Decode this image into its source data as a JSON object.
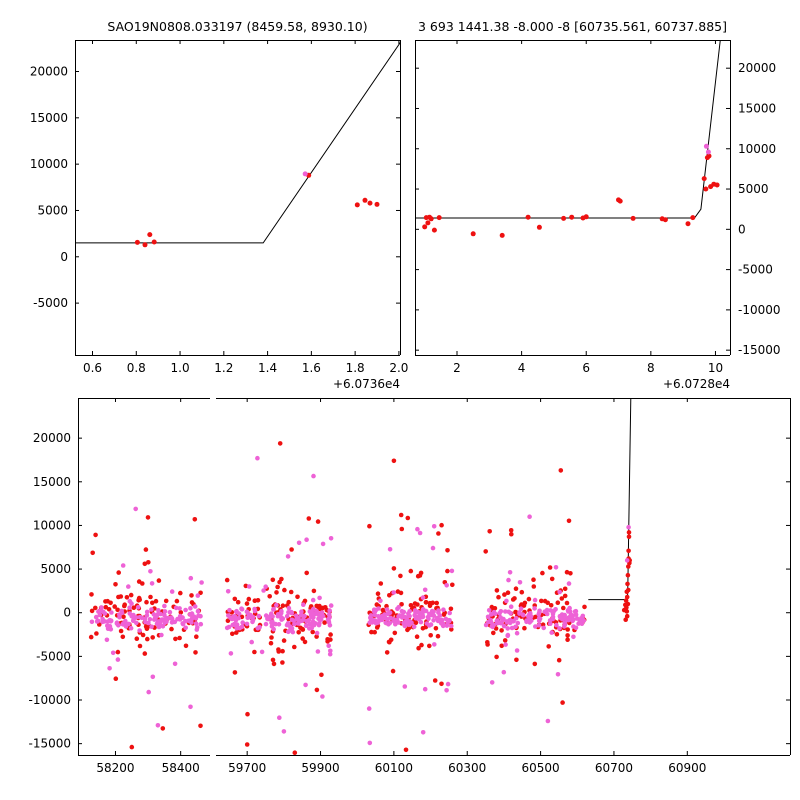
{
  "colors": {
    "red": "#ee1111",
    "violet": "#ee62d6",
    "line": "#000000",
    "frame": "#000000",
    "background": "#ffffff"
  },
  "chart_data": {
    "top_left": {
      "type": "scatter+line",
      "title": "SAO19N0808.033197 (8459.58, 8930.10)",
      "x_offset_label": "+6.0736e4",
      "ylim": [
        -10600,
        23400
      ],
      "yticks": [
        -5000,
        0,
        5000,
        10000,
        15000,
        20000
      ],
      "ytick_labels": [
        "-5000",
        "0",
        "5000",
        "10000",
        "15000",
        "20000"
      ],
      "ylabels_side": "left",
      "segments": [
        {
          "xlim": [
            0.52,
            2.005
          ],
          "xticks": [
            0.6,
            0.8,
            1.0,
            1.2,
            1.4,
            1.6,
            1.8,
            2.0
          ],
          "xtick_labels": [
            "0.6",
            "0.8",
            "1.0",
            "1.2",
            "1.4",
            "1.6",
            "1.8",
            "2.0"
          ]
        }
      ],
      "line": [
        [
          0.52,
          1500
        ],
        [
          1.38,
          1500
        ],
        [
          2.02,
          23600
        ]
      ],
      "line_seg": 0,
      "red_points": [
        [
          0.805,
          1550
        ],
        [
          0.84,
          1300
        ],
        [
          0.862,
          2400
        ],
        [
          0.882,
          1600
        ],
        [
          1.588,
          8800
        ],
        [
          1.81,
          5600
        ],
        [
          1.845,
          6100
        ],
        [
          1.868,
          5800
        ],
        [
          1.9,
          5650
        ]
      ],
      "violet_points": [
        [
          1.572,
          8950
        ]
      ]
    },
    "top_right": {
      "type": "scatter+line",
      "title": "3 693 1441.38 -8.000 -8 [60735.561, 60737.885]",
      "x_offset_label": "+6.0728e4",
      "ylim": [
        -15600,
        23500
      ],
      "yticks": [
        -15000,
        -10000,
        -5000,
        0,
        5000,
        10000,
        15000,
        20000
      ],
      "ytick_labels": [
        "-15000",
        "-10000",
        "-5000",
        "0",
        "5000",
        "10000",
        "15000",
        "20000"
      ],
      "ylabels_side": "right",
      "segments": [
        {
          "xlim": [
            0.7,
            10.45
          ],
          "xticks": [
            2,
            4,
            6,
            8,
            10
          ],
          "xtick_labels": [
            "2",
            "4",
            "6",
            "8",
            "10"
          ]
        }
      ],
      "line": [
        [
          0.7,
          1400
        ],
        [
          9.35,
          1400
        ],
        [
          9.55,
          2500
        ],
        [
          10.15,
          23500
        ]
      ],
      "line_seg": 0,
      "red_points": [
        [
          1.0,
          300
        ],
        [
          1.05,
          1450
        ],
        [
          1.1,
          800
        ],
        [
          1.15,
          1500
        ],
        [
          1.2,
          1300
        ],
        [
          1.3,
          -100
        ],
        [
          1.45,
          1450
        ],
        [
          2.5,
          -550
        ],
        [
          3.4,
          -750
        ],
        [
          4.2,
          1500
        ],
        [
          4.55,
          250
        ],
        [
          5.3,
          1350
        ],
        [
          5.55,
          1500
        ],
        [
          5.9,
          1400
        ],
        [
          6.0,
          1550
        ],
        [
          7.0,
          3650
        ],
        [
          7.05,
          3500
        ],
        [
          7.45,
          1350
        ],
        [
          8.35,
          1300
        ],
        [
          8.45,
          1200
        ],
        [
          9.15,
          700
        ],
        [
          9.3,
          1450
        ],
        [
          9.65,
          6300
        ],
        [
          9.7,
          5000
        ],
        [
          9.75,
          8900
        ],
        [
          9.8,
          9100
        ],
        [
          9.85,
          5300
        ],
        [
          9.95,
          5600
        ],
        [
          10.05,
          5500
        ]
      ],
      "violet_points": [
        [
          9.72,
          10300
        ],
        [
          9.78,
          9600
        ]
      ]
    },
    "bottom": {
      "type": "scatter+line",
      "title": "",
      "ylim": [
        -16300,
        24600
      ],
      "yticks": [
        -15000,
        -10000,
        -5000,
        0,
        5000,
        10000,
        15000,
        20000
      ],
      "ytick_labels": [
        "-15000",
        "-10000",
        "-5000",
        "0",
        "5000",
        "10000",
        "15000",
        "20000"
      ],
      "ylabels_side": "left",
      "segments": [
        {
          "xlim": [
            58085,
            58490
          ],
          "xticks": [
            58200,
            58400
          ],
          "xtick_labels": [
            "58200",
            "58400"
          ]
        },
        {
          "xlim": [
            59615,
            61180
          ],
          "xticks": [
            59700,
            59900,
            60100,
            60300,
            60500,
            60700,
            60900
          ],
          "xtick_labels": [
            "59700",
            "59900",
            "60100",
            "60300",
            "60500",
            "60700",
            "60900"
          ]
        }
      ],
      "line": [
        [
          60630,
          1500
        ],
        [
          60737,
          1500
        ],
        [
          60738,
          3500
        ],
        [
          60746,
          24600
        ]
      ],
      "line_seg": 1,
      "clusters": [
        {
          "seed": 11,
          "x": [
            58120,
            58465
          ],
          "components": [
            {
              "color": "violet",
              "n": 115,
              "mean": -650,
              "sd": 650
            },
            {
              "color": "violet",
              "n": 22,
              "mean": -300,
              "sd": 4800
            },
            {
              "color": "red",
              "n": 80,
              "mean": -250,
              "sd": 1500
            },
            {
              "color": "red",
              "n": 30,
              "mean": 200,
              "sd": 5200
            }
          ]
        },
        {
          "seed": 22,
          "x": [
            59645,
            59930
          ],
          "components": [
            {
              "color": "violet",
              "n": 125,
              "mean": -650,
              "sd": 650
            },
            {
              "color": "violet",
              "n": 26,
              "mean": -200,
              "sd": 5200
            },
            {
              "color": "red",
              "n": 85,
              "mean": -250,
              "sd": 1600
            },
            {
              "color": "red",
              "n": 34,
              "mean": 300,
              "sd": 5600
            }
          ]
        },
        {
          "seed": 33,
          "x": [
            60030,
            60260
          ],
          "components": [
            {
              "color": "violet",
              "n": 110,
              "mean": -650,
              "sd": 600
            },
            {
              "color": "violet",
              "n": 22,
              "mean": -300,
              "sd": 5200
            },
            {
              "color": "red",
              "n": 75,
              "mean": -250,
              "sd": 1500
            },
            {
              "color": "red",
              "n": 30,
              "mean": 0,
              "sd": 5600
            }
          ]
        },
        {
          "seed": 44,
          "x": [
            60350,
            60620
          ],
          "components": [
            {
              "color": "violet",
              "n": 115,
              "mean": -650,
              "sd": 650
            },
            {
              "color": "violet",
              "n": 22,
              "mean": -300,
              "sd": 4800
            },
            {
              "color": "red",
              "n": 80,
              "mean": -250,
              "sd": 1500
            },
            {
              "color": "red",
              "n": 28,
              "mean": 100,
              "sd": 5000
            }
          ]
        }
      ],
      "red_extra": [
        [
          58250,
          -15400
        ],
        [
          58290,
          5600
        ],
        [
          58210,
          4600
        ],
        [
          59790,
          19400
        ],
        [
          59868,
          10800
        ],
        [
          59700,
          -15100
        ],
        [
          60100,
          17400
        ],
        [
          60133,
          -15700
        ],
        [
          60120,
          11200
        ],
        [
          60555,
          16300
        ],
        [
          60420,
          9000
        ],
        [
          60560,
          -10300
        ],
        [
          60728,
          300
        ],
        [
          60731,
          900
        ],
        [
          60733,
          1400
        ],
        [
          60734,
          600
        ],
        [
          60735,
          2400
        ],
        [
          60736,
          -400
        ],
        [
          60736,
          1800
        ],
        [
          60737,
          3300
        ],
        [
          60738,
          4300
        ],
        [
          60738,
          1000
        ],
        [
          60739,
          5300
        ],
        [
          60739,
          2600
        ],
        [
          60740,
          6200
        ],
        [
          60740,
          7100
        ],
        [
          60741,
          8700
        ],
        [
          60741,
          9200
        ],
        [
          60742,
          5700
        ],
        [
          60743,
          6000
        ],
        [
          60735,
          150
        ],
        [
          60732,
          -800
        ]
      ],
      "violet_extra": [
        [
          58262,
          11900
        ],
        [
          58330,
          -12900
        ],
        [
          59728,
          17700
        ],
        [
          59800,
          -13600
        ],
        [
          59905,
          -9600
        ],
        [
          60210,
          9900
        ],
        [
          60180,
          -13700
        ],
        [
          60470,
          11000
        ],
        [
          60520,
          -12400
        ],
        [
          60740,
          9800
        ],
        [
          60736,
          6000
        ]
      ]
    }
  }
}
